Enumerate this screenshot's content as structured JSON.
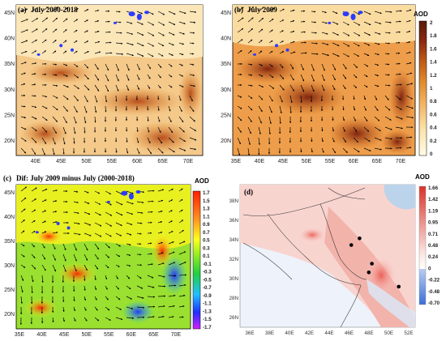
{
  "panels": [
    {
      "id": "a",
      "label": "(a)",
      "title": "July 2000-2018",
      "x_ticks": [
        "40E",
        "45E",
        "50E",
        "55E",
        "60E",
        "65E",
        "70E"
      ],
      "y_ticks": [
        "45N",
        "40N",
        "35N",
        "30N",
        "25N",
        "20N"
      ]
    },
    {
      "id": "b",
      "label": "(b)",
      "title": "July 2009",
      "x_ticks": [
        "35E",
        "40E",
        "45E",
        "50E",
        "55E",
        "60E",
        "65E",
        "70E"
      ],
      "y_ticks": [
        "45N",
        "40N",
        "35N",
        "30N",
        "25N",
        "20N"
      ]
    },
    {
      "id": "c",
      "label": "(c)",
      "title": "Dif: July 2009 minus July (2000-2018)",
      "x_ticks": [
        "35E",
        "40E",
        "45E",
        "50E",
        "55E",
        "60E",
        "65E",
        "70E"
      ],
      "y_ticks": [
        "45N",
        "40N",
        "35N",
        "30N",
        "25N",
        "20N"
      ]
    },
    {
      "id": "d",
      "label": "(d)",
      "x_ticks": [
        "36E",
        "38E",
        "40E",
        "42E",
        "44E",
        "46E",
        "48E",
        "50E",
        "52E"
      ],
      "y_ticks": [
        "38N",
        "36N",
        "34N",
        "32N",
        "30N",
        "28N",
        "26N"
      ]
    }
  ],
  "colorbar_b": {
    "title": "AOD",
    "ticks": [
      "2",
      "1.8",
      "1.6",
      "1.4",
      "1.2",
      "1",
      "0.8",
      "0.6",
      "0.4",
      "0.2",
      "0"
    ]
  },
  "colorbar_c": {
    "title": "AOD",
    "ticks": [
      "1.7",
      "1.5",
      "1.3",
      "1.1",
      "0.9",
      "0.7",
      "0.5",
      "0.3",
      "0.1",
      "-0.1",
      "-0.3",
      "-0.5",
      "-0.7",
      "-0.9",
      "-1.1",
      "-1.3",
      "-1.5",
      "-1.7"
    ]
  },
  "colorbar_d": {
    "title": "AOD",
    "ticks": [
      "1.66",
      "1.42",
      "1.19",
      "0.95",
      "0.71",
      "0.48",
      "0.24",
      "0",
      "-0.22",
      "-0.48",
      "-0.70"
    ]
  },
  "colors": {
    "aod_low": "#fffbe8",
    "aod_mid": "#e08a2a",
    "aod_high": "#5a1a0a",
    "diff_pos": "#ff2000",
    "diff_neg": "#2030ff",
    "d_pos": "#e8433a",
    "d_neg": "#3b6fd8"
  },
  "chart_data": [
    {
      "type": "heatmap",
      "panel": "a",
      "title": "July 2000-2018",
      "x_range": [
        35,
        75
      ],
      "y_range": [
        16,
        47
      ],
      "units": "AOD"
    },
    {
      "type": "heatmap",
      "panel": "b",
      "title": "July 2009",
      "x_range": [
        35,
        75
      ],
      "y_range": [
        16,
        47
      ],
      "units": "AOD",
      "colorbar_range": [
        0,
        2
      ]
    },
    {
      "type": "heatmap",
      "panel": "c",
      "title": "Dif: July 2009 minus July (2000-2018)",
      "x_range": [
        35,
        75
      ],
      "y_range": [
        16,
        47
      ],
      "units": "AOD",
      "colorbar_range": [
        -1.7,
        1.7
      ]
    },
    {
      "type": "heatmap",
      "panel": "d",
      "x_range": [
        35.5,
        52.5
      ],
      "y_range": [
        25.5,
        38.5
      ],
      "units": "AOD",
      "colorbar_range": [
        -0.7,
        1.66
      ],
      "points": [
        {
          "lon": 46.3,
          "lat": 33.0
        },
        {
          "lon": 47.1,
          "lat": 33.6
        },
        {
          "lon": 48.3,
          "lat": 31.3
        },
        {
          "lon": 48.0,
          "lat": 30.5
        },
        {
          "lon": 50.9,
          "lat": 29.2
        }
      ]
    }
  ]
}
